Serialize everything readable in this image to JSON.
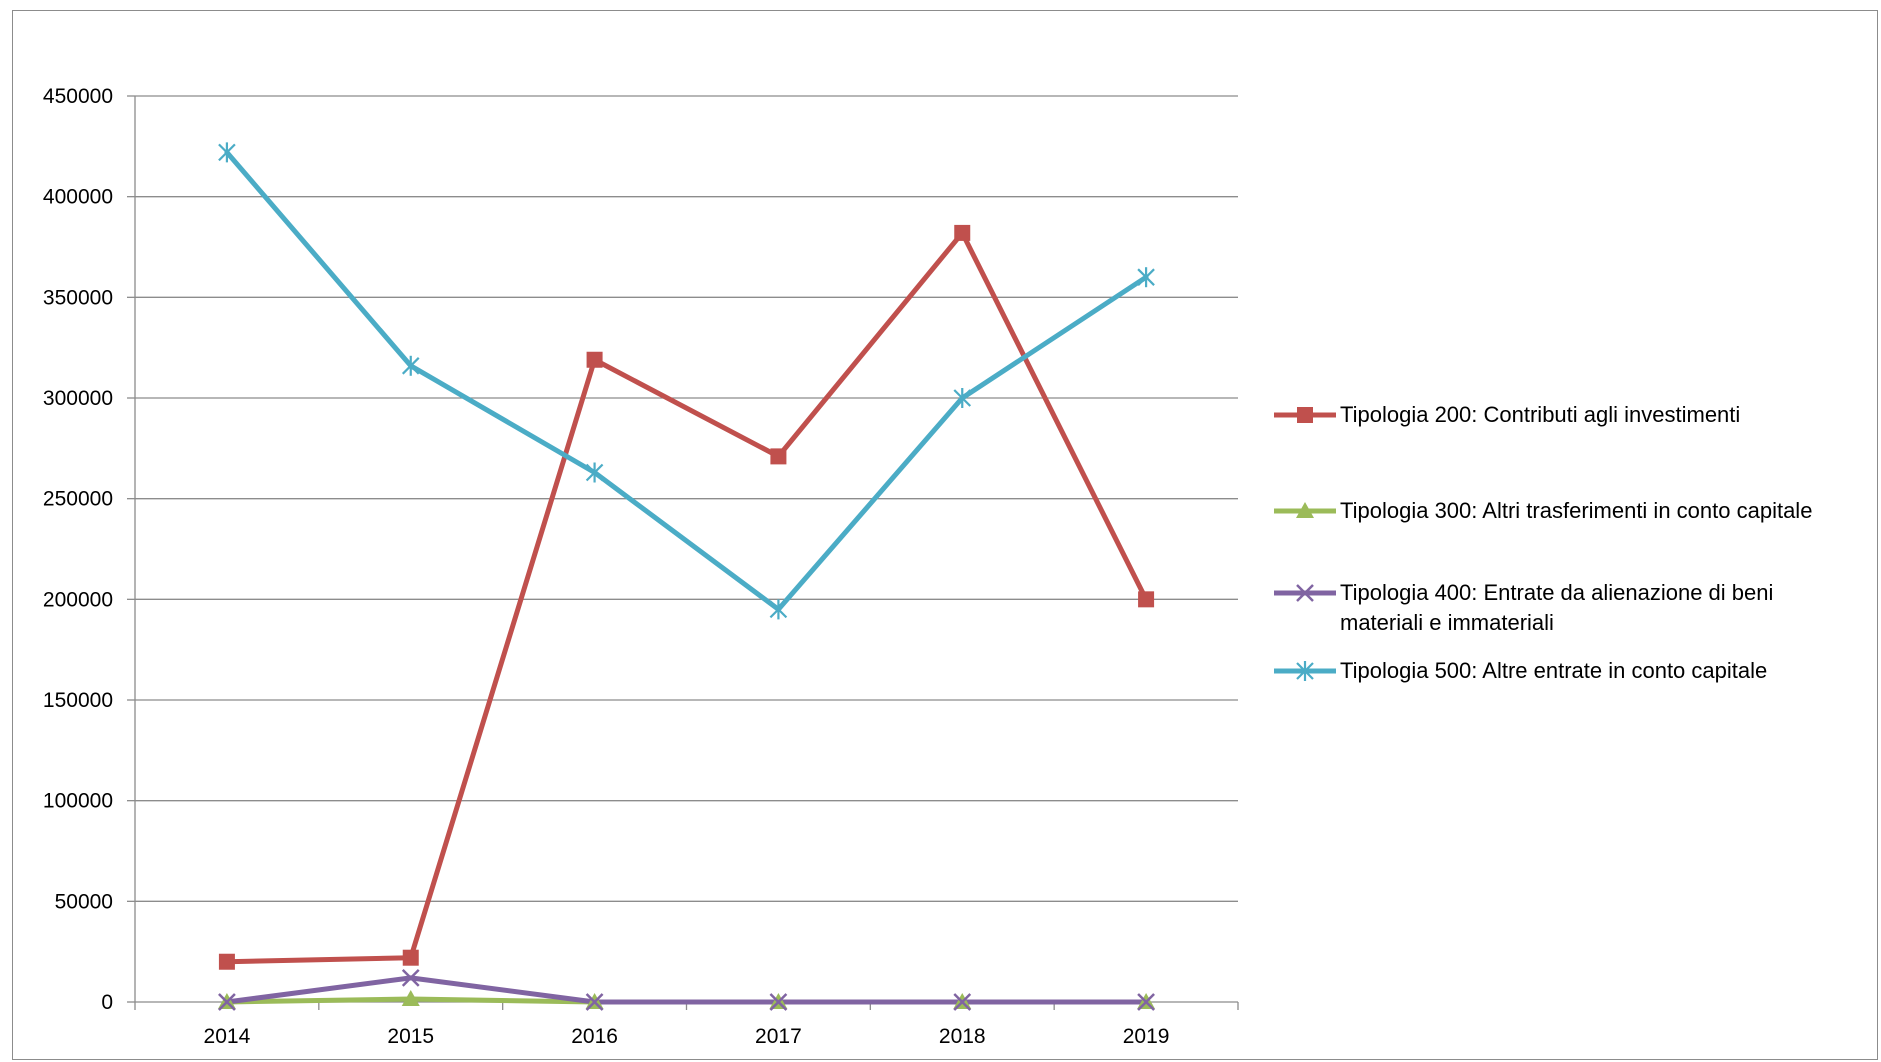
{
  "chart_data": {
    "type": "line",
    "title": "",
    "xlabel": "",
    "ylabel": "",
    "categories": [
      "2014",
      "2015",
      "2016",
      "2017",
      "2018",
      "2019"
    ],
    "ylim": [
      0,
      450000
    ],
    "yticks": [
      0,
      50000,
      100000,
      150000,
      200000,
      250000,
      300000,
      350000,
      400000,
      450000
    ],
    "ytick_labels": [
      "0",
      "50000",
      "100000",
      "150000",
      "200000",
      "250000",
      "300000",
      "350000",
      "400000",
      "450000"
    ],
    "grid": true,
    "legend_position": "right",
    "series": [
      {
        "name": "Tipologia 200: Contributi agli investimenti",
        "color": "#c0504d",
        "marker": "square",
        "values": [
          20000,
          22000,
          319000,
          271000,
          382000,
          200000
        ]
      },
      {
        "name": "Tipologia 300: Altri trasferimenti in conto capitale",
        "color": "#9bbb59",
        "marker": "triangle",
        "values": [
          0,
          1500,
          0,
          0,
          0,
          0
        ]
      },
      {
        "name": "Tipologia 400: Entrate da alienazione di beni materiali e immateriali",
        "color": "#8064a2",
        "marker": "x",
        "values": [
          0,
          12000,
          0,
          0,
          0,
          0
        ]
      },
      {
        "name": "Tipologia 500: Altre entrate in conto capitale",
        "color": "#4bacc6",
        "marker": "star",
        "values": [
          422000,
          316000,
          263000,
          195000,
          300000,
          360000
        ]
      }
    ]
  }
}
